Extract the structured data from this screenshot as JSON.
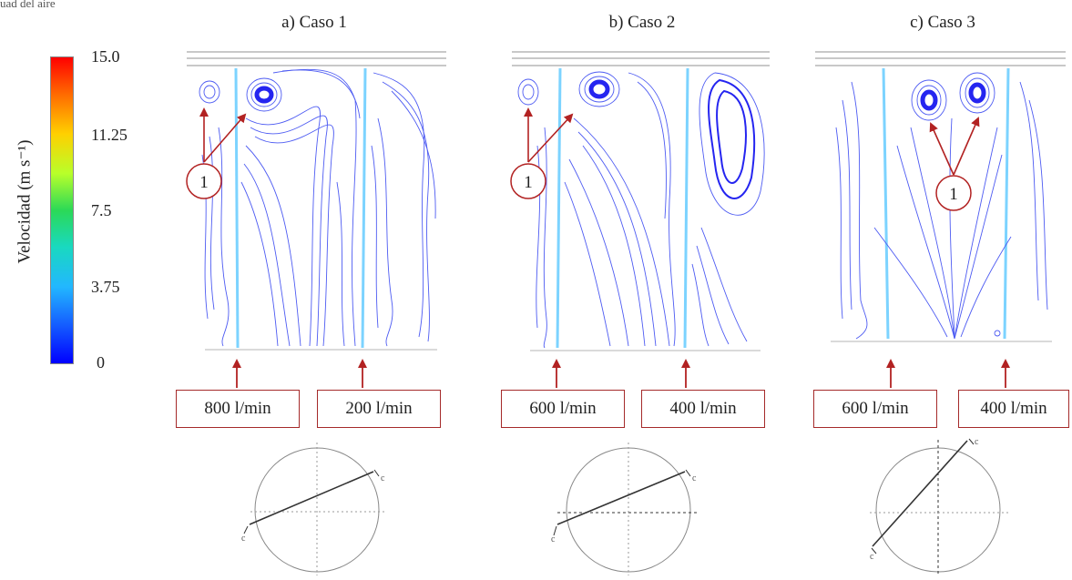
{
  "top_cropped_text": "uad del aire",
  "panels": [
    {
      "title": "a) Caso 1",
      "flow_left": "800 l/min",
      "flow_right": "200 l/min",
      "marker": "1"
    },
    {
      "title": "b) Caso 2",
      "flow_left": "600 l/min",
      "flow_right": "400 l/min",
      "marker": "1"
    },
    {
      "title": "c) Caso 3",
      "flow_left": "600 l/min",
      "flow_right": "400 l/min",
      "marker": "1"
    }
  ],
  "colorbar": {
    "label": "Velocidad (m s⁻¹)",
    "ticks": [
      "15.0",
      "11.25",
      "7.5",
      "3.75",
      "0"
    ],
    "colors": {
      "high": "#ff0000",
      "mid": "#2bd957",
      "low": "#0000ff"
    }
  },
  "diagram_marks": {
    "endpoint_letter": "c"
  },
  "colors": {
    "arrow": "#b22222",
    "streamline": "#2f3ff0",
    "streamline_light": "#7fa8ff",
    "jet": "#66ccff"
  }
}
